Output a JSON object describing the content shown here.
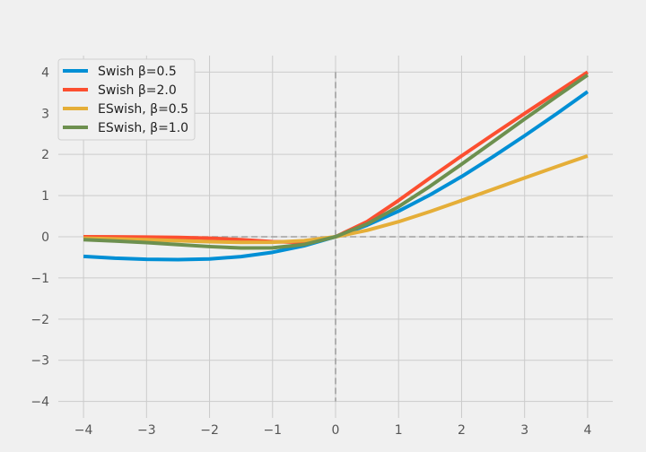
{
  "chart_data": {
    "type": "line",
    "title": "",
    "xlabel": "",
    "ylabel": "",
    "xlim": [
      -4.4,
      4.4
    ],
    "ylim": [
      -4.4,
      4.4
    ],
    "x_ticks": [
      -4,
      -3,
      -2,
      -1,
      0,
      1,
      2,
      3,
      4
    ],
    "y_ticks": [
      -4,
      -3,
      -2,
      -1,
      0,
      1,
      2,
      3,
      4
    ],
    "tick_labels_x": [
      "−4",
      "−3",
      "−2",
      "−1",
      "0",
      "1",
      "2",
      "3",
      "4"
    ],
    "tick_labels_y": [
      "−4",
      "−3",
      "−2",
      "−1",
      "0",
      "1",
      "2",
      "3",
      "4"
    ],
    "grid": true,
    "legend_position": "top-left",
    "reference_lines": [
      "x=0 dashed",
      "y=0 dashed"
    ],
    "x": [
      -4.0,
      -3.5,
      -3.0,
      -2.5,
      -2.0,
      -1.5,
      -1.0,
      -0.5,
      0.0,
      0.5,
      1.0,
      1.5,
      2.0,
      2.5,
      3.0,
      3.5,
      4.0
    ],
    "series": [
      {
        "name": "Swish β=0.5",
        "color": "#008fd5",
        "values": [
          -0.477,
          -0.521,
          -0.547,
          -0.555,
          -0.538,
          -0.482,
          -0.378,
          -0.219,
          0.0,
          0.281,
          0.622,
          1.018,
          1.462,
          1.945,
          2.453,
          2.979,
          3.523
        ]
      },
      {
        "name": "Swish β=2.0",
        "color": "#fc4f30",
        "values": [
          -0.0013,
          -0.0032,
          -0.0074,
          -0.0167,
          -0.036,
          -0.071,
          -0.119,
          -0.134,
          0.0,
          0.366,
          0.881,
          1.429,
          1.964,
          2.483,
          2.993,
          3.497,
          3.999
        ]
      },
      {
        "name": "ESwish, β=0.5",
        "color": "#e5ae38",
        "values": [
          -0.036,
          -0.0515,
          -0.0711,
          -0.0949,
          -0.1192,
          -0.1375,
          -0.1345,
          -0.0938,
          0.0,
          0.1562,
          0.3655,
          0.6125,
          0.8808,
          1.1551,
          1.4289,
          1.6985,
          1.964
        ]
      },
      {
        "name": "ESwish, β=1.0",
        "color": "#6d904f",
        "values": [
          -0.0719,
          -0.1029,
          -0.1423,
          -0.1897,
          -0.2384,
          -0.2731,
          -0.2689,
          -0.1888,
          0.0,
          0.3112,
          0.7311,
          1.2269,
          1.7616,
          2.3103,
          2.8577,
          3.3971,
          3.9281
        ]
      }
    ]
  }
}
